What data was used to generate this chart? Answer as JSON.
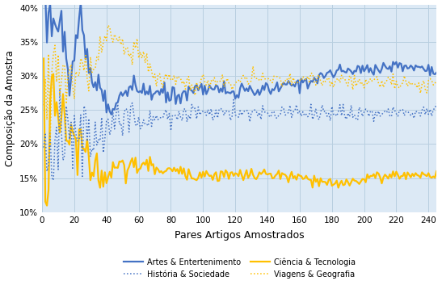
{
  "xlabel": "Pares Artigos Amostrados",
  "ylabel": "Composição da Amostra",
  "xlim": [
    0,
    245
  ],
  "ylim": [
    0.1,
    0.405
  ],
  "yticks": [
    0.1,
    0.15,
    0.2,
    0.25,
    0.3,
    0.35,
    0.4
  ],
  "xticks": [
    0,
    20,
    40,
    60,
    80,
    100,
    120,
    140,
    160,
    180,
    200,
    220,
    240
  ],
  "bg_color": "#dce9f5",
  "grid_color": "#b8cfe0",
  "line1_color": "#4472c4",
  "line2_color": "#ffc000",
  "line3_color": "#4472c4",
  "line4_color": "#ffc000",
  "legend_entries": [
    "Artes & Entertenimento",
    "Ciência & Tecnologia",
    "História & Sociedade",
    "Viagens & Geografia"
  ]
}
